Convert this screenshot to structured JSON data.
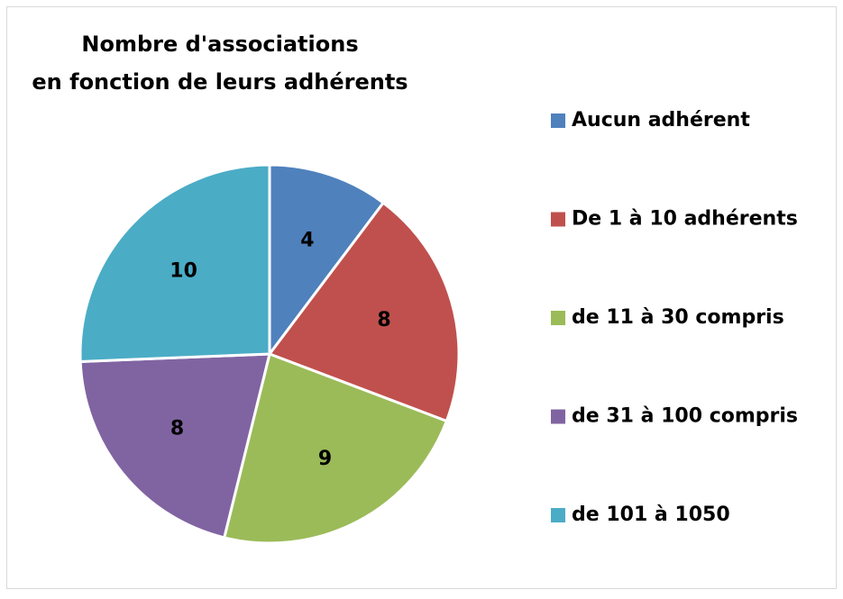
{
  "chart_data": {
    "type": "pie",
    "title": [
      "Nombre d'associations",
      "en fonction de leurs adhérents"
    ],
    "categories": [
      "Aucun adhérent",
      "De 1 à 10 adhérents",
      "de 11 à 30 compris",
      "de 31 à 100 compris",
      "de 101 à 1050"
    ],
    "values": [
      4,
      8,
      9,
      8,
      10
    ],
    "colors": [
      "#4f81bd",
      "#c0504d",
      "#9bbb59",
      "#8064a2",
      "#4bacc6"
    ],
    "legend": "right"
  }
}
